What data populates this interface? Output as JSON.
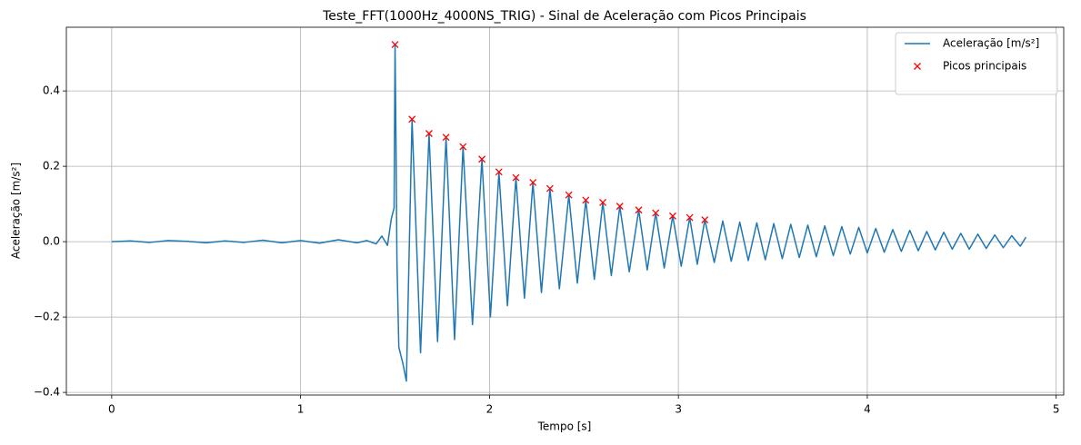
{
  "chart_data": {
    "type": "line",
    "title": "Teste_FFT(1000Hz_4000NS_TRIG) - Sinal de Aceleração com Picos Principais",
    "x_label": "Tempo [s]",
    "y_label": "Aceleração [m/s²]",
    "xlim": [
      -0.24,
      5.04
    ],
    "ylim": [
      -0.407,
      0.569
    ],
    "xticks": [
      0,
      1,
      2,
      3,
      4,
      5
    ],
    "yticks": [
      {
        "value": -0.4,
        "label": "−0.4"
      },
      {
        "value": -0.2,
        "label": "−0.2"
      },
      {
        "value": 0,
        "label": "0.0"
      },
      0.2,
      0.4
    ],
    "grid": true,
    "legend": "upper right",
    "series": [
      {
        "name": "Aceleração [m/s²]",
        "color": "#1f77b4",
        "linestyle": "solid",
        "marker": "none",
        "x": [
          0,
          0.1,
          0.2,
          0.3,
          0.4,
          0.5,
          0.6,
          0.7,
          0.8,
          0.9,
          1.0,
          1.1,
          1.2,
          1.3,
          1.35,
          1.4,
          1.43,
          1.46,
          1.48,
          1.495,
          1.5,
          1.505,
          1.51,
          1.52,
          1.54,
          1.56,
          1.59,
          1.635,
          1.68,
          1.725,
          1.77,
          1.815,
          1.86,
          1.91,
          1.96,
          2.005,
          2.05,
          2.095,
          2.14,
          2.185,
          2.23,
          2.275,
          2.32,
          2.37,
          2.42,
          2.465,
          2.51,
          2.555,
          2.6,
          2.645,
          2.69,
          2.74,
          2.79,
          2.835,
          2.88,
          2.925,
          2.97,
          3.015,
          3.06,
          3.1,
          3.14,
          3.19,
          3.235,
          3.28,
          3.325,
          3.37,
          3.415,
          3.46,
          3.505,
          3.55,
          3.595,
          3.64,
          3.685,
          3.73,
          3.775,
          3.82,
          3.865,
          3.91,
          3.955,
          4.0,
          4.045,
          4.09,
          4.135,
          4.18,
          4.225,
          4.27,
          4.315,
          4.36,
          4.405,
          4.45,
          4.495,
          4.54,
          4.585,
          4.63,
          4.675,
          4.72,
          4.765,
          4.81,
          4.84
        ],
        "values": [
          0,
          0.002,
          -0.002,
          0.003,
          0.001,
          -0.003,
          0.002,
          -0.002,
          0.004,
          -0.003,
          0.003,
          -0.004,
          0.005,
          -0.003,
          0.003,
          -0.006,
          0.015,
          -0.01,
          0.06,
          0.09,
          0.523,
          0.27,
          -0.05,
          -0.28,
          -0.32,
          -0.37,
          0.325,
          -0.295,
          0.287,
          -0.265,
          0.277,
          -0.26,
          0.252,
          -0.22,
          0.219,
          -0.2,
          0.185,
          -0.17,
          0.17,
          -0.15,
          0.157,
          -0.135,
          0.141,
          -0.125,
          0.124,
          -0.11,
          0.11,
          -0.1,
          0.104,
          -0.09,
          0.094,
          -0.08,
          0.084,
          -0.075,
          0.076,
          -0.07,
          0.068,
          -0.065,
          0.064,
          -0.06,
          0.058,
          -0.055,
          0.055,
          -0.052,
          0.052,
          -0.05,
          0.05,
          -0.048,
          0.048,
          -0.045,
          0.046,
          -0.042,
          0.044,
          -0.04,
          0.042,
          -0.037,
          0.04,
          -0.033,
          0.038,
          -0.03,
          0.035,
          -0.028,
          0.032,
          -0.026,
          0.03,
          -0.024,
          0.027,
          -0.022,
          0.025,
          -0.02,
          0.022,
          -0.02,
          0.02,
          -0.018,
          0.018,
          -0.016,
          0.016,
          -0.012,
          0.012
        ]
      },
      {
        "name": "Picos principais",
        "color": "#ff0000",
        "linestyle": "none",
        "marker": "x",
        "x": [
          1.5,
          1.59,
          1.68,
          1.77,
          1.86,
          1.96,
          2.05,
          2.14,
          2.23,
          2.32,
          2.42,
          2.51,
          2.6,
          2.69,
          2.79,
          2.88,
          2.97,
          3.06,
          3.14
        ],
        "values": [
          0.523,
          0.325,
          0.287,
          0.277,
          0.252,
          0.219,
          0.185,
          0.17,
          0.157,
          0.141,
          0.124,
          0.11,
          0.104,
          0.094,
          0.084,
          0.076,
          0.068,
          0.064,
          0.058
        ]
      }
    ]
  }
}
